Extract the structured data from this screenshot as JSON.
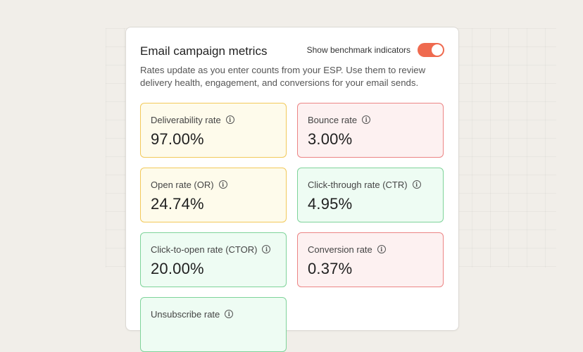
{
  "card": {
    "title": "Email campaign metrics",
    "benchmark_label": "Show benchmark indicators",
    "benchmark_enabled": true,
    "description": "Rates update as you enter counts from your ESP. Use them to review delivery health, engagement, and conversions for your email sends."
  },
  "metrics": [
    {
      "label": "Deliverability rate",
      "value": "97.00%",
      "status": "yellow"
    },
    {
      "label": "Bounce rate",
      "value": "3.00%",
      "status": "red"
    },
    {
      "label": "Open rate (OR)",
      "value": "24.74%",
      "status": "yellow"
    },
    {
      "label": "Click-through rate (CTR)",
      "value": "4.95%",
      "status": "green"
    },
    {
      "label": "Click-to-open rate (CTOR)",
      "value": "20.00%",
      "status": "green"
    },
    {
      "label": "Conversion rate",
      "value": "0.37%",
      "status": "red"
    },
    {
      "label": "Unsubscribe rate",
      "value": "",
      "status": "green"
    }
  ],
  "colors": {
    "accent": "#ef6a4f",
    "yellow_border": "#f2c95a",
    "red_border": "#ec8585",
    "green_border": "#7fd39a"
  }
}
